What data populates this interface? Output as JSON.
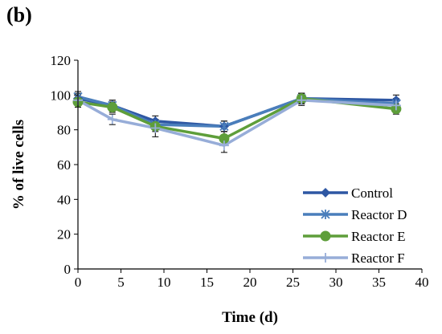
{
  "panel_label": "(b)",
  "chart_data": {
    "type": "line",
    "title": "",
    "xlabel": "Time (d)",
    "ylabel": "% of live cells",
    "xlim": [
      0,
      40
    ],
    "ylim": [
      0,
      120
    ],
    "xticks": [
      0,
      5,
      10,
      15,
      20,
      25,
      30,
      35,
      40
    ],
    "yticks": [
      0,
      20,
      40,
      60,
      80,
      100,
      120
    ],
    "grid": false,
    "legend_position": "bottom-right",
    "series": [
      {
        "name": "Control",
        "color": "#2E57A3",
        "marker": "diamond",
        "x": [
          0,
          4,
          9,
          17,
          26,
          37
        ],
        "y": [
          98,
          94,
          85,
          82,
          98,
          97
        ],
        "yerr": [
          3,
          3,
          3,
          3,
          3,
          3
        ]
      },
      {
        "name": "Reactor D",
        "color": "#4A7EBB",
        "marker": "star",
        "x": [
          0,
          4,
          9,
          17,
          26,
          37
        ],
        "y": [
          99,
          94,
          83,
          82,
          98,
          95
        ],
        "yerr": [
          3,
          3,
          3,
          3,
          3,
          3
        ]
      },
      {
        "name": "Reactor E",
        "color": "#5E9E3A",
        "marker": "circle",
        "x": [
          0,
          4,
          9,
          17,
          26,
          37
        ],
        "y": [
          96,
          93,
          82,
          75,
          98,
          92
        ],
        "yerr": [
          3,
          3,
          3,
          4,
          3,
          3
        ]
      },
      {
        "name": "Reactor F",
        "color": "#97ADD8",
        "marker": "plus",
        "x": [
          0,
          4,
          9,
          17,
          26,
          37
        ],
        "y": [
          97,
          86,
          81,
          71,
          97,
          94
        ],
        "yerr": [
          3,
          3,
          5,
          4,
          3,
          3
        ]
      }
    ]
  }
}
